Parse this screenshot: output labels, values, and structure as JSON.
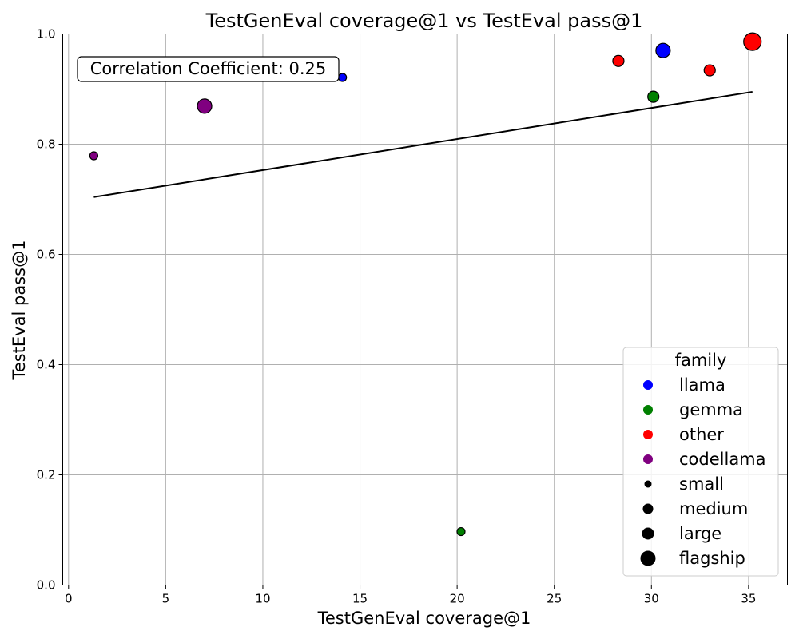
{
  "chart_data": {
    "type": "scatter",
    "title": "TestGenEval coverage@1 vs TestEval pass@1",
    "xlabel": "TestGenEval coverage@1",
    "ylabel": "TestEval pass@1",
    "xlim": [
      -0.3,
      37
    ],
    "ylim": [
      0,
      1.0
    ],
    "xticks": [
      "0",
      "5",
      "10",
      "15",
      "20",
      "25",
      "30",
      "35"
    ],
    "yticks": [
      "0.0",
      "0.2",
      "0.4",
      "0.6",
      "0.8",
      "1.0"
    ],
    "grid": true,
    "annotation": "Correlation Coefficient: 0.25",
    "colors": {
      "llama": "#0000ff",
      "gemma": "#008000",
      "other": "#ff0000",
      "codellama": "#800080"
    },
    "sizes": {
      "small": 5,
      "medium": 7,
      "large": 9,
      "flagship": 11
    },
    "points": [
      {
        "x": 1.3,
        "y": 0.779,
        "family": "codellama",
        "size": "small"
      },
      {
        "x": 7.0,
        "y": 0.869,
        "family": "codellama",
        "size": "large"
      },
      {
        "x": 14.1,
        "y": 0.921,
        "family": "llama",
        "size": "small"
      },
      {
        "x": 20.2,
        "y": 0.097,
        "family": "gemma",
        "size": "small"
      },
      {
        "x": 28.3,
        "y": 0.951,
        "family": "other",
        "size": "medium"
      },
      {
        "x": 30.1,
        "y": 0.886,
        "family": "gemma",
        "size": "medium"
      },
      {
        "x": 30.6,
        "y": 0.97,
        "family": "llama",
        "size": "large"
      },
      {
        "x": 33.0,
        "y": 0.934,
        "family": "other",
        "size": "medium"
      },
      {
        "x": 35.2,
        "y": 0.986,
        "family": "other",
        "size": "flagship"
      }
    ],
    "trendline": {
      "x": [
        1.3,
        35.2
      ],
      "y": [
        0.704,
        0.895
      ]
    },
    "legend": {
      "title": "family",
      "position": "lower-right",
      "families": [
        "llama",
        "gemma",
        "other",
        "codellama"
      ],
      "size_classes": [
        "small",
        "medium",
        "large",
        "flagship"
      ]
    }
  }
}
